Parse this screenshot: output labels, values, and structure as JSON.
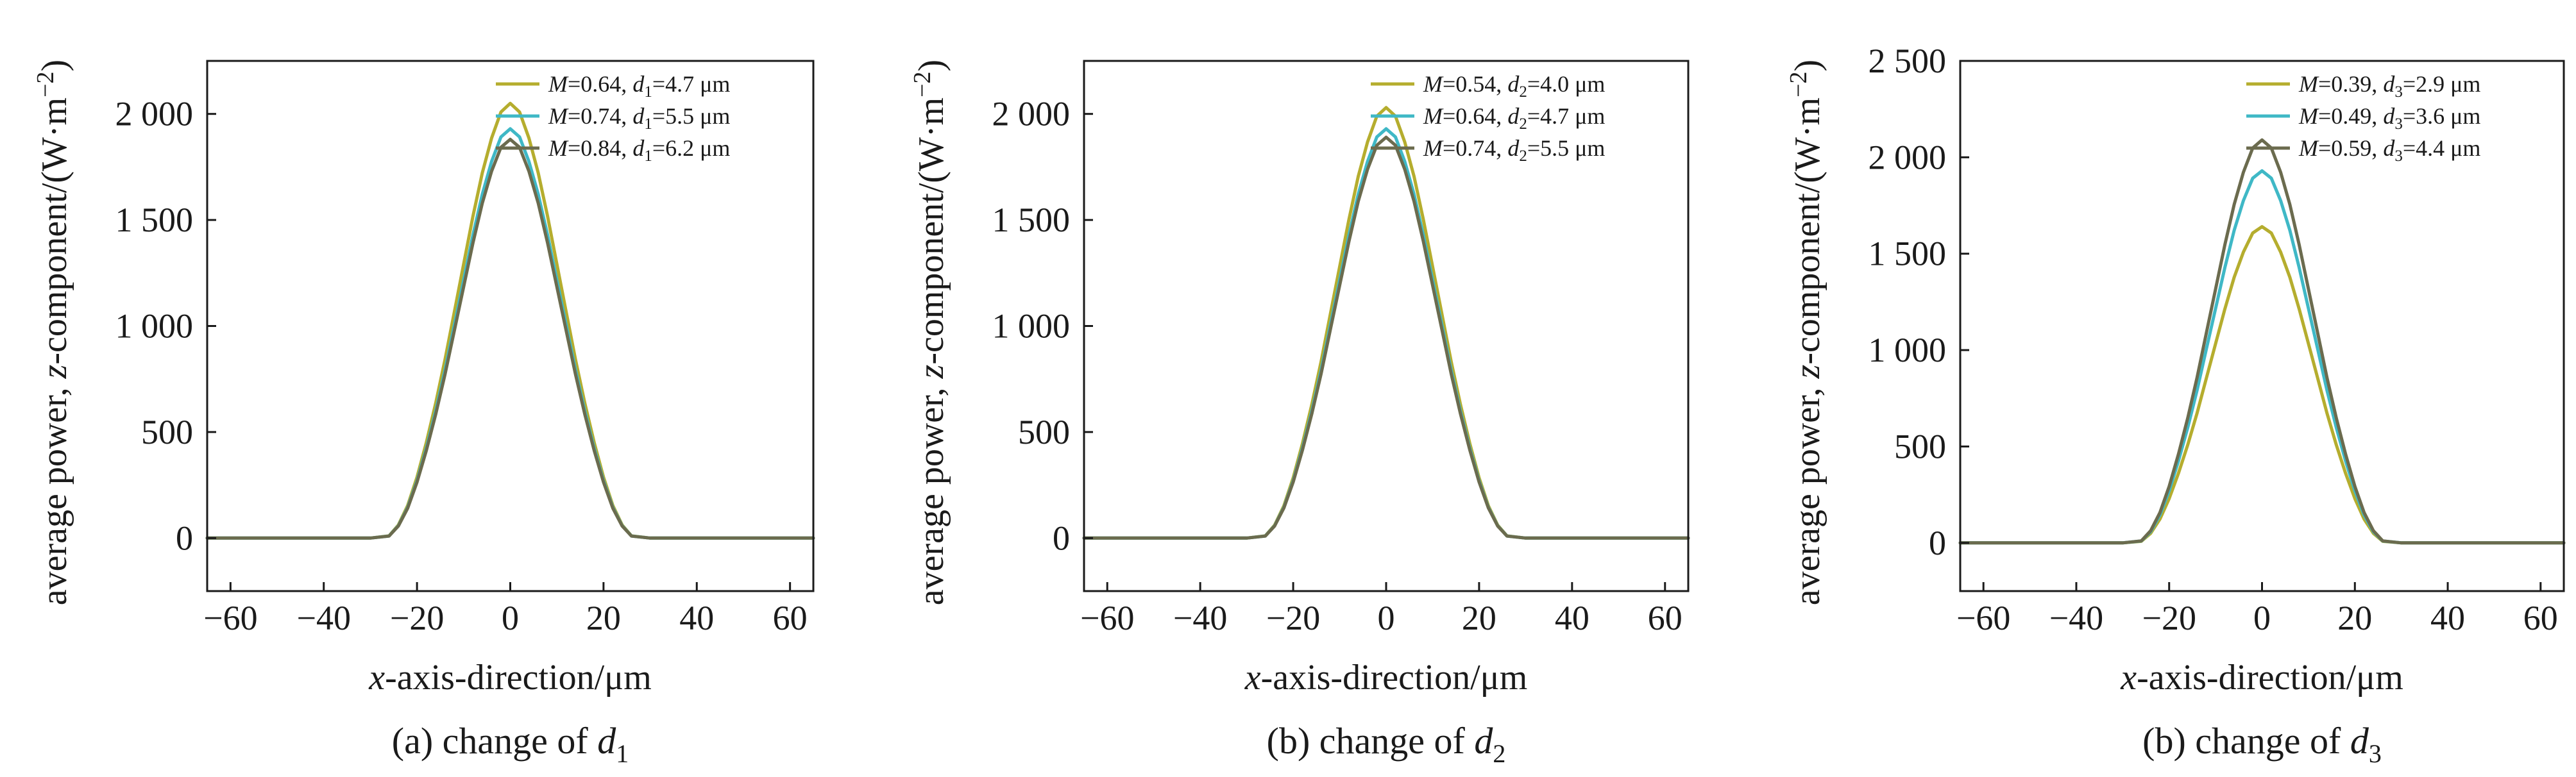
{
  "chart_data": [
    {
      "type": "line",
      "caption": {
        "prefix": "(a) change of ",
        "var": "d",
        "sub": "1"
      },
      "xlabel": {
        "italic": "x",
        "rest": "-axis-direction/μm"
      },
      "ylabel": {
        "pre": "average power, ",
        "italic": "z",
        "mid": "-component/(W·m",
        "sup": "−2",
        "post": ")"
      },
      "xlim": [
        -65,
        65
      ],
      "ylim": [
        -250,
        2250
      ],
      "xticks": [
        -60,
        -40,
        -20,
        0,
        20,
        40,
        60
      ],
      "xtick_labels": [
        "−60",
        "−40",
        "−20",
        "0",
        "20",
        "40",
        "60"
      ],
      "yticks": [
        0,
        500,
        1000,
        1500,
        2000
      ],
      "ytick_labels": [
        "0",
        "500",
        "1 000",
        "1 500",
        "2 000"
      ],
      "legend_position": "top-right",
      "grid": false,
      "series": [
        {
          "name": {
            "m": "M",
            "mval": "=0.64, ",
            "d": "d",
            "sub": "1",
            "dval": "=4.7 μm"
          },
          "color": "#b5ad2e",
          "peak": 2050
        },
        {
          "name": {
            "m": "M",
            "mval": "=0.74, ",
            "d": "d",
            "sub": "1",
            "dval": "=5.5 μm"
          },
          "color": "#3fb8c6",
          "peak": 1930
        },
        {
          "name": {
            "m": "M",
            "mval": "=0.84, ",
            "d": "d",
            "sub": "1",
            "dval": "=6.2 μm"
          },
          "color": "#6b6b4e",
          "peak": 1880
        }
      ],
      "x": [
        -65,
        -60,
        -50,
        -40,
        -30,
        -26,
        -24,
        -22,
        -20,
        -18,
        -16,
        -14,
        -12,
        -10,
        -8,
        -6,
        -4,
        -2,
        0,
        2,
        4,
        6,
        8,
        10,
        12,
        14,
        16,
        18,
        20,
        22,
        24,
        26,
        30,
        40,
        50,
        60,
        65
      ],
      "shape": [
        0,
        0,
        0,
        0,
        0,
        0.005,
        0.03,
        0.075,
        0.14,
        0.22,
        0.31,
        0.41,
        0.52,
        0.63,
        0.74,
        0.84,
        0.92,
        0.98,
        1,
        0.98,
        0.92,
        0.84,
        0.74,
        0.63,
        0.52,
        0.41,
        0.31,
        0.22,
        0.14,
        0.075,
        0.03,
        0.005,
        0,
        0,
        0,
        0,
        0
      ]
    },
    {
      "type": "line",
      "caption": {
        "prefix": "(b) change of ",
        "var": "d",
        "sub": "2"
      },
      "xlabel": {
        "italic": "x",
        "rest": "-axis-direction/μm"
      },
      "ylabel": {
        "pre": "average power, ",
        "italic": "z",
        "mid": "-component/(W·m",
        "sup": "−2",
        "post": ")"
      },
      "xlim": [
        -65,
        65
      ],
      "ylim": [
        -250,
        2250
      ],
      "xticks": [
        -60,
        -40,
        -20,
        0,
        20,
        40,
        60
      ],
      "xtick_labels": [
        "−60",
        "−40",
        "−20",
        "0",
        "20",
        "40",
        "60"
      ],
      "yticks": [
        0,
        500,
        1000,
        1500,
        2000
      ],
      "ytick_labels": [
        "0",
        "500",
        "1 000",
        "1 500",
        "2 000"
      ],
      "legend_position": "top-right",
      "grid": false,
      "series": [
        {
          "name": {
            "m": "M",
            "mval": "=0.54, ",
            "d": "d",
            "sub": "2",
            "dval": "=4.0 μm"
          },
          "color": "#b5ad2e",
          "peak": 2030
        },
        {
          "name": {
            "m": "M",
            "mval": "=0.64, ",
            "d": "d",
            "sub": "2",
            "dval": "=4.7 μm"
          },
          "color": "#3fb8c6",
          "peak": 1930
        },
        {
          "name": {
            "m": "M",
            "mval": "=0.74, ",
            "d": "d",
            "sub": "2",
            "dval": "=5.5 μm"
          },
          "color": "#6b6b4e",
          "peak": 1890
        }
      ],
      "x": [
        -65,
        -60,
        -50,
        -40,
        -30,
        -26,
        -24,
        -22,
        -20,
        -18,
        -16,
        -14,
        -12,
        -10,
        -8,
        -6,
        -4,
        -2,
        0,
        2,
        4,
        6,
        8,
        10,
        12,
        14,
        16,
        18,
        20,
        22,
        24,
        26,
        30,
        40,
        50,
        60,
        65
      ],
      "shape": [
        0,
        0,
        0,
        0,
        0,
        0.005,
        0.03,
        0.075,
        0.14,
        0.22,
        0.31,
        0.41,
        0.52,
        0.63,
        0.74,
        0.84,
        0.92,
        0.98,
        1,
        0.98,
        0.92,
        0.84,
        0.74,
        0.63,
        0.52,
        0.41,
        0.31,
        0.22,
        0.14,
        0.075,
        0.03,
        0.005,
        0,
        0,
        0,
        0,
        0
      ]
    },
    {
      "type": "line",
      "caption": {
        "prefix": "(b) change of ",
        "var": "d",
        "sub": "3"
      },
      "xlabel": {
        "italic": "x",
        "rest": "-axis-direction/μm"
      },
      "ylabel": {
        "pre": "average power, ",
        "italic": "z",
        "mid": "-component/(W·m",
        "sup": "−2",
        "post": ")"
      },
      "xlim": [
        -65,
        65
      ],
      "ylim": [
        -250,
        2500
      ],
      "xticks": [
        -60,
        -40,
        -20,
        0,
        20,
        40,
        60
      ],
      "xtick_labels": [
        "−60",
        "−40",
        "−20",
        "0",
        "20",
        "40",
        "60"
      ],
      "yticks": [
        0,
        500,
        1000,
        1500,
        2000,
        2500
      ],
      "ytick_labels": [
        "0",
        "500",
        "1 000",
        "1 500",
        "2 000",
        "2 500"
      ],
      "legend_position": "top-right",
      "grid": false,
      "series": [
        {
          "name": {
            "m": "M",
            "mval": "=0.39, ",
            "d": "d",
            "sub": "3",
            "dval": "=2.9 μm"
          },
          "color": "#b5ad2e",
          "peak": 1640
        },
        {
          "name": {
            "m": "M",
            "mval": "=0.49, ",
            "d": "d",
            "sub": "3",
            "dval": "=3.6 μm"
          },
          "color": "#3fb8c6",
          "peak": 1930
        },
        {
          "name": {
            "m": "M",
            "mval": "=0.59, ",
            "d": "d",
            "sub": "3",
            "dval": "=4.4 μm"
          },
          "color": "#6b6b4e",
          "peak": 2090
        }
      ],
      "x": [
        -65,
        -60,
        -50,
        -40,
        -30,
        -26,
        -24,
        -22,
        -20,
        -18,
        -16,
        -14,
        -12,
        -10,
        -8,
        -6,
        -4,
        -2,
        0,
        2,
        4,
        6,
        8,
        10,
        12,
        14,
        16,
        18,
        20,
        22,
        24,
        26,
        30,
        40,
        50,
        60,
        65
      ],
      "shape": [
        0,
        0,
        0,
        0,
        0,
        0.005,
        0.03,
        0.075,
        0.14,
        0.22,
        0.31,
        0.41,
        0.52,
        0.63,
        0.74,
        0.84,
        0.92,
        0.98,
        1,
        0.98,
        0.92,
        0.84,
        0.74,
        0.63,
        0.52,
        0.41,
        0.31,
        0.22,
        0.14,
        0.075,
        0.03,
        0.005,
        0,
        0,
        0,
        0,
        0
      ]
    }
  ]
}
